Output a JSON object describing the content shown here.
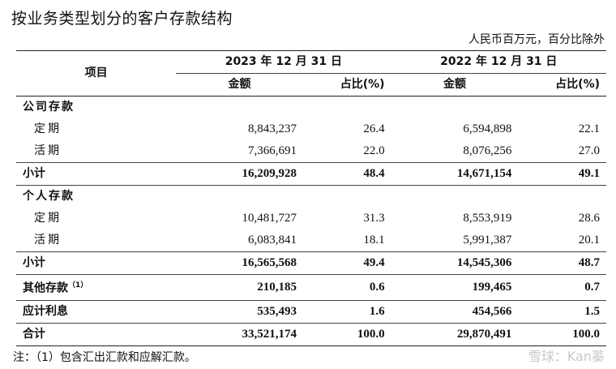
{
  "title": "按业务类型划分的客户存款结构",
  "unit": "人民币百万元，百分比除外",
  "header": {
    "item": "项目",
    "year_2023": "2023 年 12 月 31 日",
    "year_2022": "2022 年 12 月 31 日",
    "amount": "金额",
    "ratio": "占比(%)"
  },
  "sections": {
    "corporate": "公司存款",
    "personal": "个人存款"
  },
  "rows": {
    "corp_fixed": {
      "label": "定期",
      "a23": "8,843,237",
      "r23": "26.4",
      "a22": "6,594,898",
      "r22": "22.1"
    },
    "corp_demand": {
      "label": "活期",
      "a23": "7,366,691",
      "r23": "22.0",
      "a22": "8,076,256",
      "r22": "27.0"
    },
    "corp_subtotal": {
      "label": "小计",
      "a23": "16,209,928",
      "r23": "48.4",
      "a22": "14,671,154",
      "r22": "49.1"
    },
    "pers_fixed": {
      "label": "定期",
      "a23": "10,481,727",
      "r23": "31.3",
      "a22": "8,553,919",
      "r22": "28.6"
    },
    "pers_demand": {
      "label": "活期",
      "a23": "6,083,841",
      "r23": "18.1",
      "a22": "5,991,387",
      "r22": "20.1"
    },
    "pers_subtotal": {
      "label": "小计",
      "a23": "16,565,568",
      "r23": "49.4",
      "a22": "14,545,306",
      "r22": "48.7"
    },
    "other": {
      "label": "其他存款",
      "sup": "（1）",
      "a23": "210,185",
      "r23": "0.6",
      "a22": "199,465",
      "r22": "0.7"
    },
    "interest": {
      "label": "应计利息",
      "a23": "535,493",
      "r23": "1.6",
      "a22": "454,566",
      "r22": "1.5"
    },
    "total": {
      "label": "合计",
      "a23": "33,521,174",
      "r23": "100.0",
      "a22": "29,870,491",
      "r22": "100.0"
    }
  },
  "note": "注：（1）包含汇出汇款和应解汇款。",
  "watermark": "雪球：Kan蓁"
}
